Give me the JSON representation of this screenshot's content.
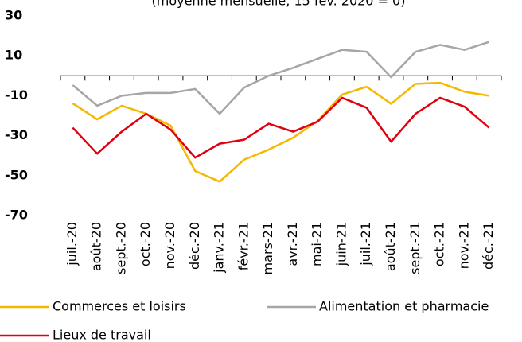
{
  "chart_data": {
    "type": "line",
    "subtitle": "(moyenne mensuelle, 15 fév. 2020 = 0)",
    "categories": [
      "juil.-20",
      "août-20",
      "sept.-20",
      "oct.-20",
      "nov.-20",
      "déc.-20",
      "janv.-21",
      "févr.-21",
      "mars-21",
      "avr.-21",
      "mai-21",
      "juin-21",
      "juil.-21",
      "août-21",
      "sept.-21",
      "oct.-21",
      "nov.-21",
      "déc.-21"
    ],
    "series": [
      {
        "name": "Commerces et loisirs",
        "color": "#f5b800",
        "values": [
          -13.8,
          -21.8,
          -15,
          -19,
          -25,
          -47.7,
          -53,
          -42,
          -37,
          -31,
          -22.6,
          -9.4,
          -5.5,
          -14,
          -4,
          -3.5,
          -8,
          -10
        ]
      },
      {
        "name": "Alimentation et pharmacie",
        "color": "#a6a6a6",
        "values": [
          -4.7,
          -15,
          -10,
          -8.6,
          -8.6,
          -6.6,
          -19,
          -5.9,
          0,
          4,
          8.5,
          13,
          12,
          -0.7,
          12,
          15.5,
          13,
          17
        ]
      },
      {
        "name": "Lieux de travail",
        "color": "#e0000f",
        "values": [
          -26,
          -39,
          -28,
          -19,
          -27,
          -41,
          -34,
          -32,
          -24,
          -28,
          -23,
          -11,
          -16,
          -33,
          -19,
          -11,
          -15.5,
          -26
        ]
      }
    ],
    "ylim": [
      -70,
      30
    ],
    "yticks": [
      30,
      10,
      -10,
      -30,
      -50,
      -70
    ],
    "grid": false,
    "legend": "bottom"
  }
}
